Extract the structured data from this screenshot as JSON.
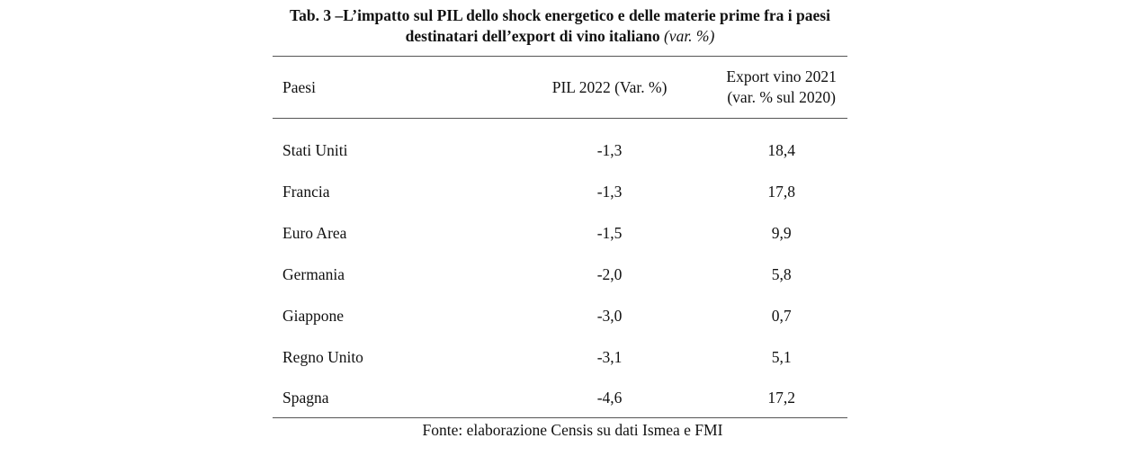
{
  "title": {
    "bold": "Tab. 3 –L’impatto sul PIL dello shock energetico e delle materie prime fra i paesi destinatari dell’export di vino italiano",
    "italic": "(var. %)"
  },
  "table": {
    "headers": {
      "country": "Paesi",
      "pil": "PIL 2022 (Var. %)",
      "export_line1": "Export vino 2021",
      "export_line2": "(var. % sul 2020)"
    },
    "rows": [
      {
        "country": "Stati Uniti",
        "pil": "-1,3",
        "export": "18,4"
      },
      {
        "country": "Francia",
        "pil": "-1,3",
        "export": "17,8"
      },
      {
        "country": "Euro Area",
        "pil": "-1,5",
        "export": "9,9"
      },
      {
        "country": "Germania",
        "pil": "-2,0",
        "export": "5,8"
      },
      {
        "country": "Giappone",
        "pil": "-3,0",
        "export": "0,7"
      },
      {
        "country": "Regno Unito",
        "pil": "-3,1",
        "export": "5,1"
      },
      {
        "country": "Spagna",
        "pil": "-4,6",
        "export": "17,2"
      }
    ]
  },
  "source": "Fonte: elaborazione Censis su dati Ismea e FMI"
}
